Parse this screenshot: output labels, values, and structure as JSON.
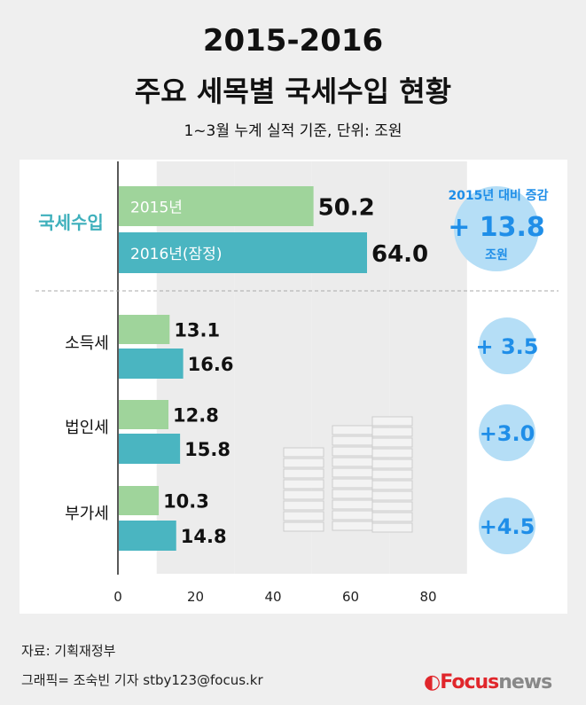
{
  "title_line1": "2015-2016",
  "title_line2": "주요 세목별 국세수입 현황",
  "subtitle": "1~3월 누계 실적 기준, 단위: 조원",
  "chart_data": {
    "type": "bar",
    "orientation": "horizontal",
    "categories": [
      "국세수입",
      "소득세",
      "법인세",
      "부가세"
    ],
    "series": [
      {
        "name": "2015년",
        "values": [
          50.2,
          13.1,
          12.8,
          10.3
        ],
        "color": "#9fd49b"
      },
      {
        "name": "2016년(잠정)",
        "values": [
          64.0,
          16.6,
          15.8,
          14.8
        ],
        "color": "#4ab5c1"
      }
    ],
    "xlim": [
      0,
      80
    ],
    "xticks": [
      0,
      20,
      40,
      60,
      80
    ],
    "value_labels": [
      [
        "50.2",
        "13.1",
        "12.8",
        "10.3"
      ],
      [
        "64.0",
        "16.6",
        "15.8",
        "14.8"
      ]
    ],
    "change_header": "2015년 대비 증감",
    "changes": [
      "+ 13.8",
      "+ 3.5",
      "+3.0",
      "+4.5"
    ],
    "change_unit": "조원",
    "circle_color": "#b5def6",
    "change_text_color": "#1f8ee8",
    "highlight_color": "#3fb0bc"
  },
  "source": "자료: 기획재정부",
  "credit": "그래픽= 조숙빈 기자 stby123@focus.kr",
  "logo": {
    "focus": "Focus",
    "news": "news"
  }
}
